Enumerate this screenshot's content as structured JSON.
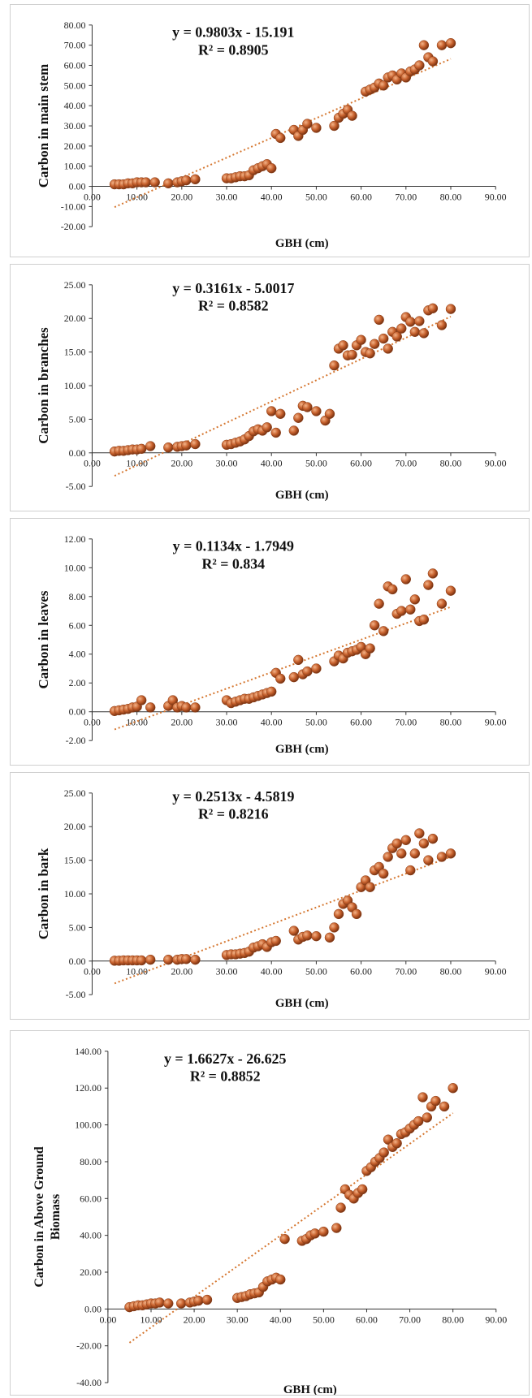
{
  "chart_data": [
    {
      "type": "scatter",
      "ylabel": "Carbon in main stem",
      "xlabel": "GBH (cm)",
      "equation": "y = 0.9803x - 15.191",
      "r2": "R² = 0.8905",
      "xlim": [
        0,
        90
      ],
      "ylim": [
        -20,
        80
      ],
      "xticks": [
        "0.00",
        "10.00",
        "20.00",
        "30.00",
        "40.00",
        "50.00",
        "60.00",
        "70.00",
        "80.00",
        "90.00"
      ],
      "yticks": [
        "80.00",
        "70.00",
        "60.00",
        "50.00",
        "40.00",
        "30.00",
        "20.00",
        "10.00",
        "0.00",
        "-10.00",
        "-20.00"
      ],
      "trend": {
        "slope": 0.9803,
        "intercept": -15.191,
        "x": [
          5,
          80
        ]
      },
      "series": [
        {
          "x": [
            5,
            6,
            7,
            8,
            9,
            10,
            11,
            12,
            14,
            17,
            19,
            20,
            21,
            23,
            30,
            31,
            32,
            33,
            34,
            35,
            36,
            37,
            38,
            39,
            40,
            41,
            42,
            45,
            46,
            47,
            48,
            50,
            54,
            55,
            56,
            57,
            58,
            61,
            62,
            63,
            64,
            65,
            66,
            67,
            68,
            69,
            70,
            71,
            72,
            73,
            74,
            75,
            76,
            78,
            80
          ],
          "y": [
            1,
            1,
            1,
            1.5,
            1.5,
            2,
            2,
            2,
            2,
            1.5,
            2,
            2.5,
            3,
            3.5,
            4,
            4,
            4.5,
            5,
            5,
            5.5,
            8,
            9,
            10,
            11,
            9,
            26,
            24,
            28,
            25,
            28,
            31,
            29,
            30,
            34,
            36,
            38,
            35,
            47,
            48,
            49,
            51,
            50,
            54,
            55,
            53,
            56,
            54,
            57,
            58,
            60,
            70,
            64,
            62,
            70,
            71
          ]
        }
      ]
    },
    {
      "type": "scatter",
      "ylabel": "Carbon in branches",
      "xlabel": "GBH (cm)",
      "equation": "y = 0.3161x - 5.0017",
      "r2": "R² = 0.8582",
      "xlim": [
        0,
        90
      ],
      "ylim": [
        -5,
        25
      ],
      "xticks": [
        "0.00",
        "10.00",
        "20.00",
        "30.00",
        "40.00",
        "50.00",
        "60.00",
        "70.00",
        "80.00",
        "90.00"
      ],
      "yticks": [
        "25.00",
        "20.00",
        "15.00",
        "10.00",
        "5.00",
        "0.00",
        "-5.00"
      ],
      "trend": {
        "slope": 0.3161,
        "intercept": -5.0017,
        "x": [
          5,
          80
        ]
      },
      "series": [
        {
          "x": [
            5,
            6,
            7,
            8,
            9,
            10,
            11,
            13,
            17,
            19,
            20,
            21,
            23,
            30,
            31,
            32,
            33,
            34,
            35,
            36,
            37,
            38,
            39,
            40,
            41,
            42,
            45,
            46,
            47,
            48,
            50,
            52,
            53,
            54,
            55,
            56,
            57,
            58,
            59,
            60,
            61,
            62,
            63,
            64,
            65,
            66,
            67,
            68,
            69,
            70,
            71,
            72,
            73,
            74,
            75,
            76,
            78,
            80
          ],
          "y": [
            0.2,
            0.3,
            0.3,
            0.4,
            0.5,
            0.5,
            0.6,
            1.0,
            0.8,
            0.9,
            1.0,
            1.1,
            1.3,
            1.2,
            1.3,
            1.5,
            1.7,
            2.0,
            2.5,
            3.2,
            3.5,
            3.3,
            3.8,
            6.2,
            3.0,
            5.8,
            3.3,
            5.2,
            7.0,
            6.8,
            6.2,
            4.8,
            5.8,
            13.0,
            15.5,
            16.0,
            14.5,
            14.6,
            16.0,
            16.8,
            15.0,
            14.8,
            16.2,
            19.8,
            17.0,
            15.5,
            18.0,
            17.3,
            18.5,
            20.2,
            19.5,
            18.0,
            19.6,
            17.8,
            21.2,
            21.5,
            19.0,
            21.4
          ]
        }
      ]
    },
    {
      "type": "scatter",
      "ylabel": "Carbon in leaves",
      "xlabel": "GBH (cm)",
      "equation": "y = 0.1134x - 1.7949",
      "r2": "R² = 0.834",
      "xlim": [
        0,
        90
      ],
      "ylim": [
        -2,
        12
      ],
      "xticks": [
        "0.00",
        "10.00",
        "20.00",
        "30.00",
        "40.00",
        "50.00",
        "60.00",
        "70.00",
        "80.00",
        "90.00"
      ],
      "yticks": [
        "12.00",
        "10.00",
        "8.00",
        "6.00",
        "4.00",
        "2.00",
        "0.00",
        "-2.00"
      ],
      "trend": {
        "slope": 0.1134,
        "intercept": -1.7949,
        "x": [
          5,
          80
        ]
      },
      "series": [
        {
          "x": [
            5,
            6,
            7,
            8,
            9,
            10,
            11,
            13,
            17,
            18,
            19,
            20,
            21,
            23,
            30,
            31,
            32,
            33,
            34,
            35,
            36,
            37,
            38,
            39,
            40,
            41,
            42,
            45,
            46,
            47,
            48,
            50,
            54,
            55,
            56,
            57,
            58,
            59,
            60,
            61,
            62,
            63,
            64,
            65,
            66,
            67,
            68,
            69,
            70,
            71,
            72,
            73,
            74,
            75,
            76,
            78,
            80
          ],
          "y": [
            0.05,
            0.1,
            0.15,
            0.2,
            0.3,
            0.35,
            0.8,
            0.3,
            0.4,
            0.8,
            0.3,
            0.4,
            0.3,
            0.3,
            0.8,
            0.6,
            0.7,
            0.8,
            0.9,
            0.9,
            1.0,
            1.1,
            1.2,
            1.3,
            1.4,
            2.7,
            2.3,
            2.4,
            3.6,
            2.6,
            2.8,
            3.0,
            3.5,
            3.9,
            3.7,
            4.1,
            4.2,
            4.3,
            4.5,
            4.0,
            4.4,
            6.0,
            7.5,
            5.6,
            8.7,
            8.5,
            6.8,
            7.0,
            9.2,
            7.1,
            7.8,
            6.3,
            6.4,
            8.8,
            9.6,
            7.5,
            8.4
          ]
        }
      ]
    },
    {
      "type": "scatter",
      "ylabel": "Carbon in bark",
      "xlabel": "GBH (cm)",
      "equation": "y = 0.2513x - 4.5819",
      "r2": "R² = 0.8216",
      "xlim": [
        0,
        90
      ],
      "ylim": [
        -5,
        25
      ],
      "xticks": [
        "0.00",
        "10.00",
        "20.00",
        "30.00",
        "40.00",
        "50.00",
        "60.00",
        "70.00",
        "80.00",
        "90.00"
      ],
      "yticks": [
        "25.00",
        "20.00",
        "15.00",
        "10.00",
        "5.00",
        "0.00",
        "-5.00"
      ],
      "trend": {
        "slope": 0.2513,
        "intercept": -4.5819,
        "x": [
          5,
          80
        ]
      },
      "series": [
        {
          "x": [
            5,
            6,
            7,
            8,
            9,
            10,
            11,
            13,
            17,
            19,
            20,
            21,
            23,
            30,
            31,
            32,
            33,
            34,
            35,
            36,
            37,
            38,
            39,
            40,
            41,
            45,
            46,
            47,
            48,
            50,
            53,
            54,
            55,
            56,
            57,
            58,
            59,
            60,
            61,
            62,
            63,
            64,
            65,
            66,
            67,
            68,
            69,
            70,
            71,
            72,
            73,
            74,
            75,
            76,
            78,
            80
          ],
          "y": [
            0.05,
            0.05,
            0.1,
            0.1,
            0.1,
            0.1,
            0.1,
            0.2,
            0.2,
            0.2,
            0.3,
            0.3,
            0.2,
            0.9,
            1.0,
            1.0,
            1.1,
            1.2,
            1.4,
            2.0,
            2.2,
            2.5,
            2.1,
            2.8,
            3.0,
            4.5,
            3.2,
            3.6,
            3.8,
            3.7,
            3.5,
            5.0,
            7.0,
            8.5,
            9.0,
            8.0,
            7.0,
            11.0,
            12.0,
            11.0,
            13.5,
            14.0,
            13.0,
            15.5,
            16.8,
            17.5,
            16.0,
            18.0,
            13.5,
            16.0,
            19.0,
            17.5,
            15.0,
            18.2,
            15.5,
            16.0
          ]
        }
      ]
    },
    {
      "type": "scatter",
      "ylabel": "Carbon in Above Ground Biomass",
      "xlabel": "GBH (cm)",
      "equation": "y = 1.6627x - 26.625",
      "r2": "R² = 0.8852",
      "xlim": [
        0,
        90
      ],
      "ylim": [
        -40,
        140
      ],
      "xticks": [
        "0.00",
        "10.00",
        "20.00",
        "30.00",
        "40.00",
        "50.00",
        "60.00",
        "70.00",
        "80.00",
        "90.00"
      ],
      "yticks": [
        "140.00",
        "120.00",
        "100.00",
        "80.00",
        "60.00",
        "40.00",
        "20.00",
        "0.00",
        "-20.00",
        "-40.00"
      ],
      "trend": {
        "slope": 1.6627,
        "intercept": -26.625,
        "x": [
          5,
          80
        ]
      },
      "series": [
        {
          "x": [
            5,
            6,
            7,
            8,
            9,
            10,
            11,
            12,
            14,
            17,
            19,
            20,
            21,
            23,
            30,
            31,
            32,
            33,
            34,
            35,
            36,
            37,
            38,
            39,
            40,
            41,
            45,
            46,
            47,
            48,
            50,
            53,
            54,
            55,
            56,
            57,
            58,
            59,
            60,
            61,
            62,
            63,
            64,
            65,
            66,
            67,
            68,
            69,
            70,
            71,
            72,
            73,
            74,
            75,
            76,
            78,
            80
          ],
          "y": [
            1,
            1.5,
            2,
            2,
            2.5,
            3,
            3,
            3.5,
            3,
            3,
            3.5,
            4,
            4.5,
            5,
            6,
            6.5,
            7,
            8,
            8.5,
            9,
            12,
            15,
            16,
            17,
            16,
            38,
            37,
            38,
            40,
            41,
            42,
            44,
            55,
            65,
            62,
            60,
            63,
            65,
            75,
            77,
            80,
            82,
            85,
            92,
            88,
            90,
            95,
            96,
            98,
            100,
            102,
            115,
            104,
            110,
            113,
            110,
            120
          ]
        }
      ]
    }
  ]
}
